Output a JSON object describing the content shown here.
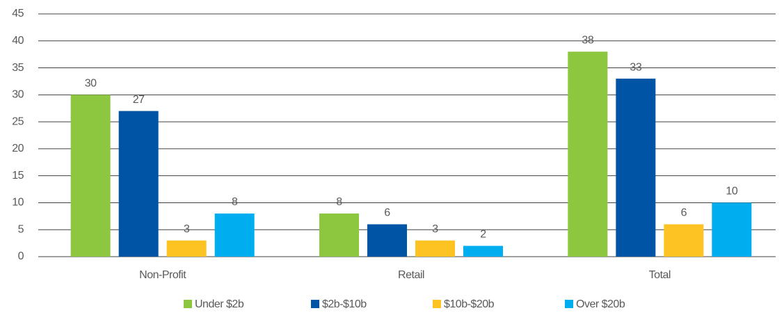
{
  "chart_data": {
    "type": "bar",
    "categories": [
      "Non-Profit",
      "Retail",
      "Total"
    ],
    "series": [
      {
        "name": "Under $2b",
        "color": "#8dc63f",
        "values": [
          30,
          8,
          38
        ]
      },
      {
        "name": "$2b-$10b",
        "color": "#0054a6",
        "values": [
          27,
          6,
          33
        ]
      },
      {
        "name": "$10b-$20b",
        "color": "#fdc322",
        "values": [
          3,
          3,
          6
        ]
      },
      {
        "name": "Over $20b",
        "color": "#00aeef",
        "values": [
          8,
          2,
          10
        ]
      }
    ],
    "ylim": [
      0,
      45
    ],
    "yticks": [
      0,
      5,
      10,
      15,
      20,
      25,
      30,
      35,
      40,
      45
    ],
    "grid": true,
    "legend": "bottom"
  }
}
